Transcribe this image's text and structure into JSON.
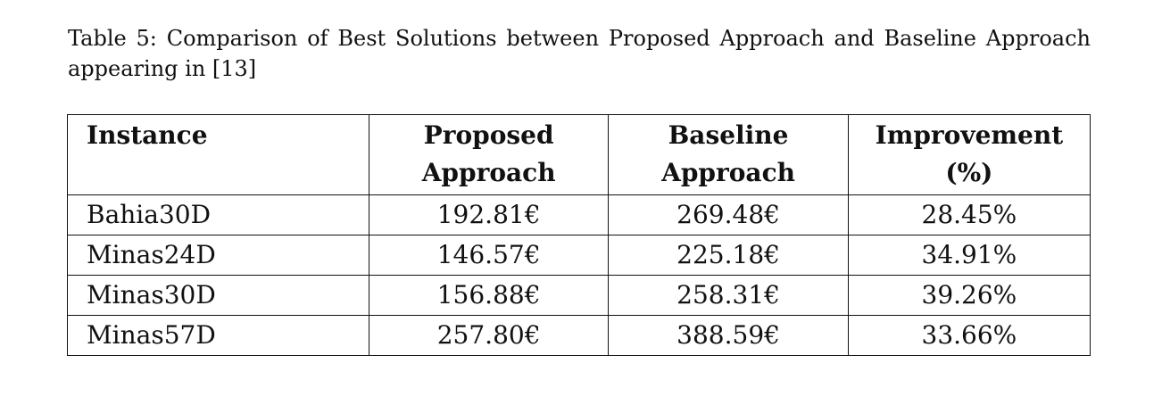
{
  "caption": "Table 5: Comparison of Best Solutions between Proposed Approach and Baseline Approach appearing in [13]",
  "table": {
    "headers": [
      {
        "line1": "Instance",
        "line2": ""
      },
      {
        "line1": "Proposed",
        "line2": "Approach"
      },
      {
        "line1": "Baseline",
        "line2": "Approach"
      },
      {
        "line1": "Improvement",
        "line2": "(%)"
      }
    ],
    "rows": [
      {
        "instance": "Bahia30D",
        "proposed": "192.81€",
        "baseline": "269.48€",
        "improvement": "28.45%"
      },
      {
        "instance": "Minas24D",
        "proposed": "146.57€",
        "baseline": "225.18€",
        "improvement": "34.91%"
      },
      {
        "instance": "Minas30D",
        "proposed": "156.88€",
        "baseline": "258.31€",
        "improvement": "39.26%"
      },
      {
        "instance": "Minas57D",
        "proposed": "257.80€",
        "baseline": "388.59€",
        "improvement": "33.66%"
      }
    ]
  }
}
